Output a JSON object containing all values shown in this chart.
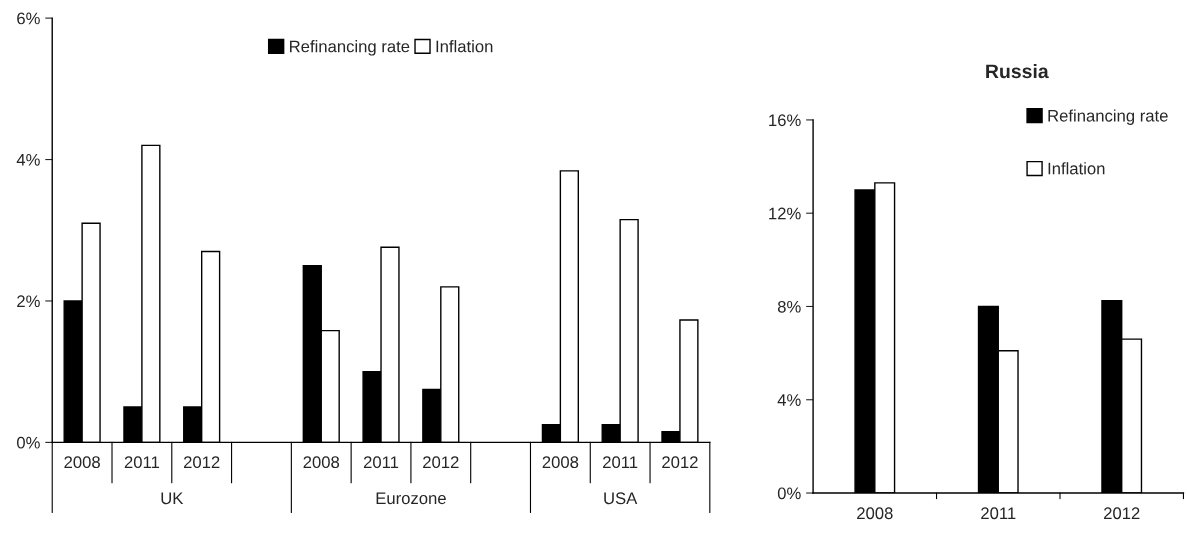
{
  "chart_data": [
    {
      "type": "bar",
      "categories": [
        "2008",
        "2011",
        "2012",
        null,
        "2008",
        "2011",
        "2012",
        null,
        "2008",
        "2011",
        "2012"
      ],
      "series": [
        {
          "name": "Refinancing rate",
          "color": "#000000",
          "values": [
            2.0,
            0.5,
            0.5,
            null,
            2.5,
            1.0,
            0.75,
            null,
            0.25,
            0.25,
            0.15
          ]
        },
        {
          "name": "Inflation",
          "color": "#ffffff",
          "values": [
            3.1,
            4.2,
            2.7,
            null,
            1.58,
            2.76,
            2.2,
            null,
            3.84,
            3.15,
            1.73
          ]
        }
      ],
      "annotations": [
        "UK",
        "Eurozone",
        "USA"
      ],
      "ylim": [
        0,
        6
      ],
      "yticks": [
        {
          "value": 0,
          "label": "0%"
        },
        {
          "value": 2,
          "label": "2%"
        },
        {
          "value": 4,
          "label": "4%"
        },
        {
          "value": 6,
          "label": "6%"
        }
      ],
      "legend": "top"
    },
    {
      "type": "bar",
      "title": "Russia",
      "categories": [
        "2008",
        "2011",
        "2012"
      ],
      "series": [
        {
          "name": "Refinancing rate",
          "color": "#000000",
          "values": [
            13.0,
            8.0,
            8.25
          ]
        },
        {
          "name": "Inflation",
          "color": "#ffffff",
          "values": [
            13.3,
            6.1,
            6.6
          ]
        }
      ],
      "ylim": [
        0,
        16
      ],
      "yticks": [
        {
          "value": 0,
          "label": "0%"
        },
        {
          "value": 4,
          "label": "4%"
        },
        {
          "value": 8,
          "label": "8%"
        },
        {
          "value": 12,
          "label": "12%"
        },
        {
          "value": 16,
          "label": "16%"
        }
      ],
      "legend": "top right"
    }
  ]
}
